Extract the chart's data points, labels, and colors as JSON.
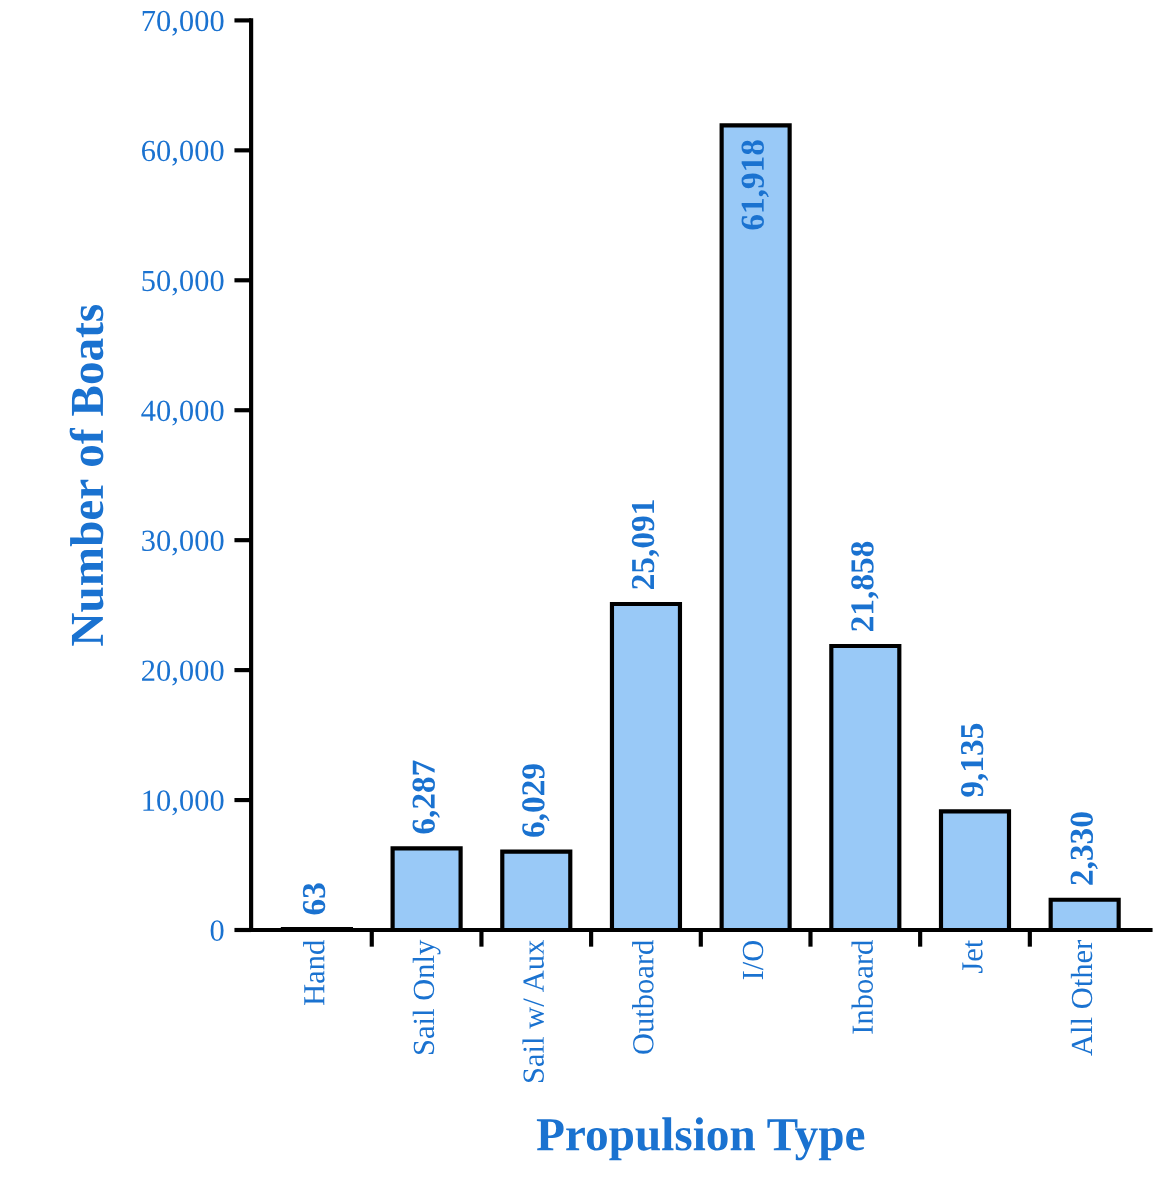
{
  "chart_data": {
    "type": "bar",
    "xlabel": "Propulsion Type",
    "ylabel": "Number of Boats",
    "categories": [
      "Hand",
      "Sail Only",
      "Sail w/ Aux",
      "Outboard",
      "I/O",
      "Inboard",
      "Jet",
      "All Other"
    ],
    "values": [
      63,
      6287,
      6029,
      25091,
      61918,
      21858,
      9135,
      2330
    ],
    "value_labels": [
      "63",
      "6,287",
      "6,029",
      "25,091",
      "61,918",
      "21,858",
      "9,135",
      "2,330"
    ],
    "color": "#99c9f7",
    "ylim": [
      0,
      70000
    ],
    "yticks": [
      0,
      {
        "value": 10000,
        "label": "10,000"
      },
      {
        "value": 20000,
        "label": "20,000"
      },
      {
        "value": 30000,
        "label": "30,000"
      },
      {
        "value": 40000,
        "label": "40,000"
      },
      {
        "value": 50000,
        "label": "50,000"
      },
      {
        "value": 60000,
        "label": "60,000"
      },
      {
        "value": 70000,
        "label": "70,000"
      }
    ],
    "grid": false,
    "legend": false
  }
}
